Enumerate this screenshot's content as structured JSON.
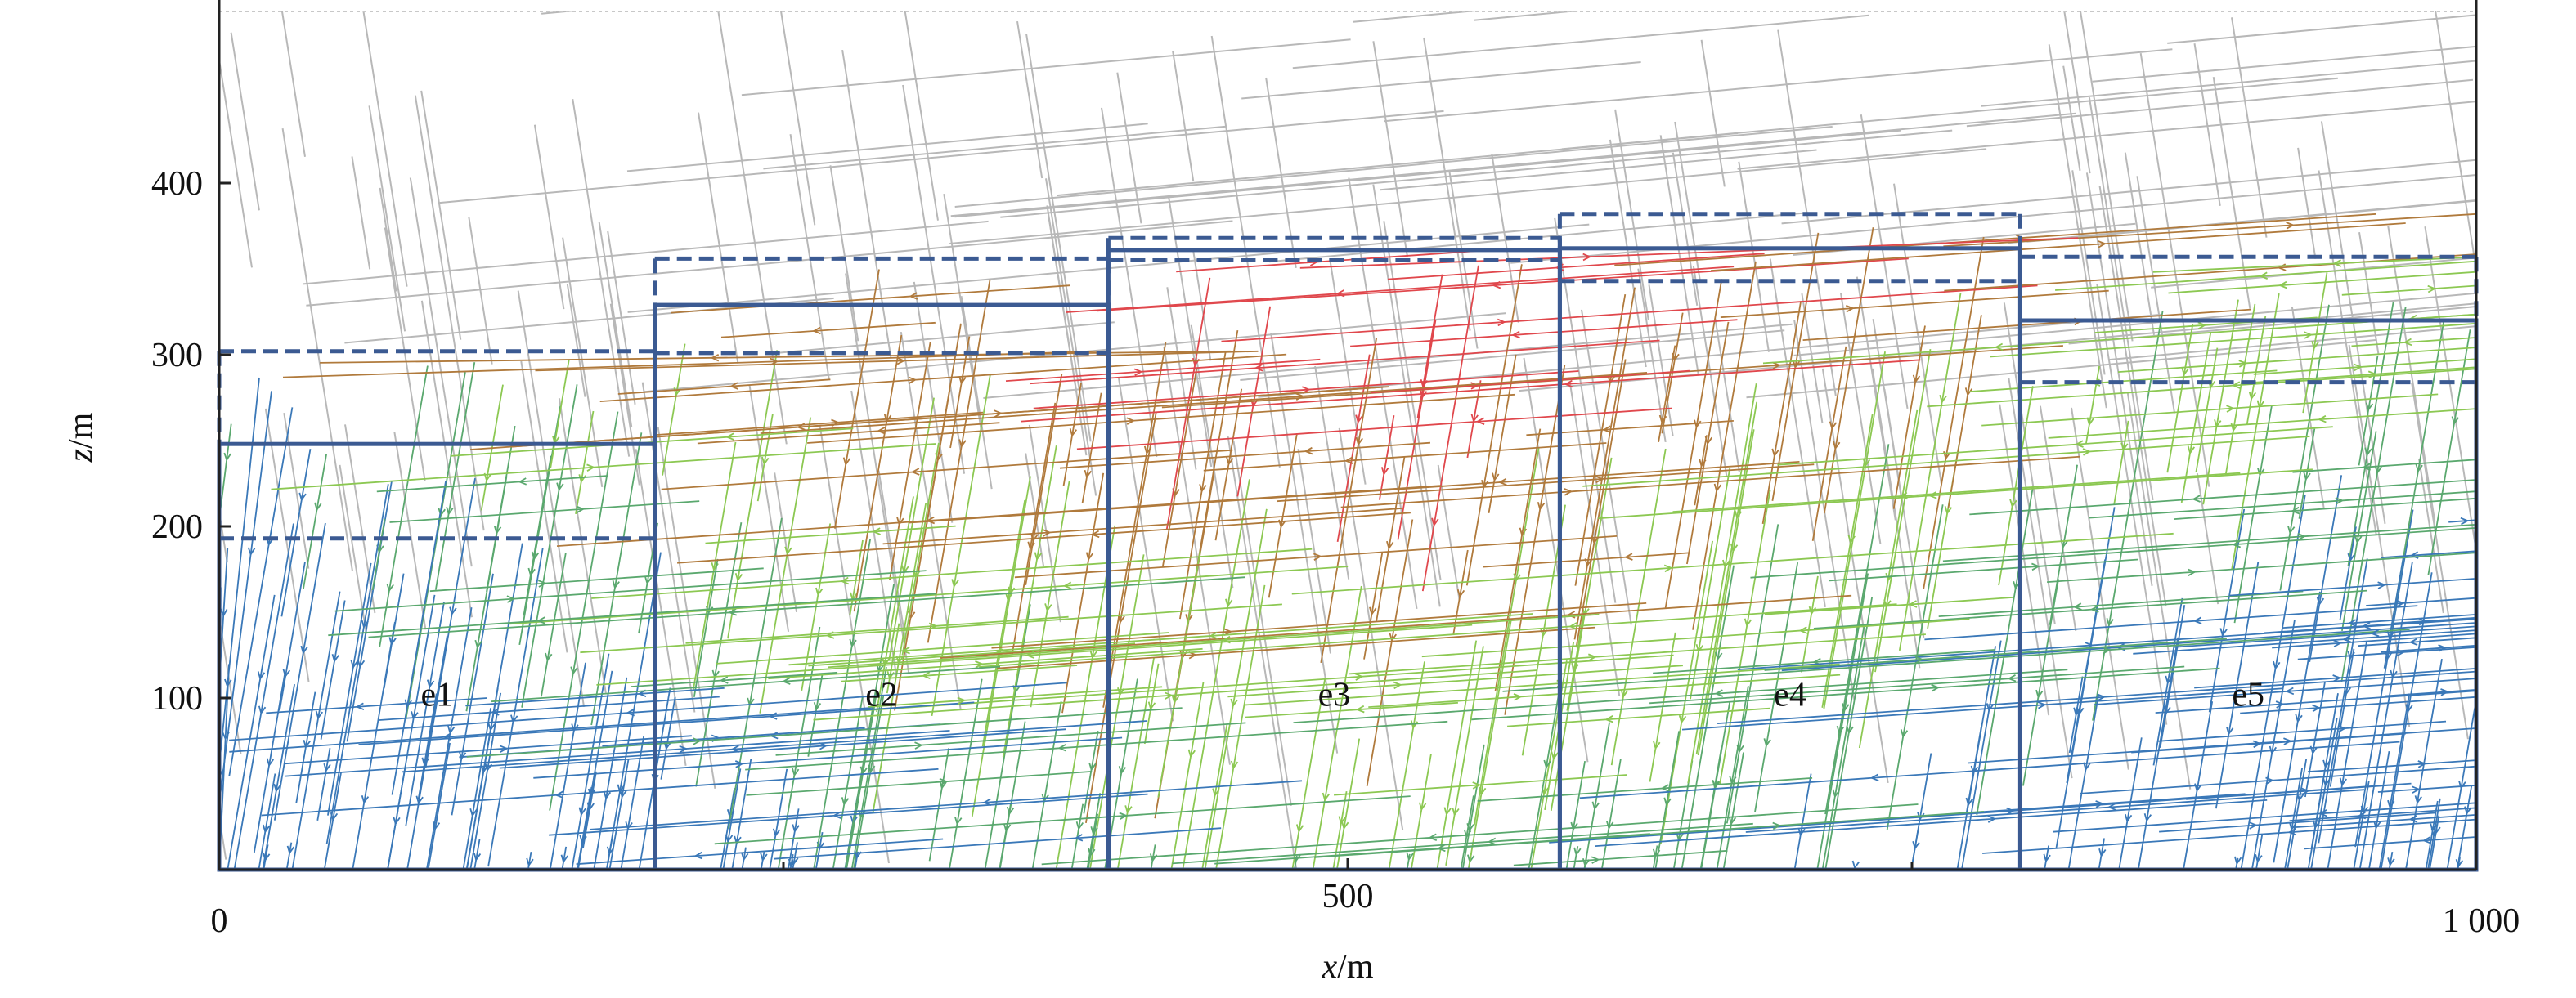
{
  "chart_data": {
    "type": "diagram",
    "xlabel_var": "x",
    "xlabel_unit": "/m",
    "ylabel_var": "z",
    "ylabel_unit": "/m",
    "xlim": [
      0,
      1000
    ],
    "ylim": [
      0,
      500
    ],
    "x_ticks": [
      0,
      500,
      1000
    ],
    "x_tick_labels": [
      "0",
      "500",
      "1 000"
    ],
    "x_minor_ticks": [
      250,
      750
    ],
    "y_ticks": [
      100,
      200,
      300,
      400
    ],
    "y_tick_labels": [
      "100",
      "200",
      "300",
      "400"
    ],
    "zones": [
      {
        "label": "e1",
        "x0": 0,
        "x1": 193,
        "z_solid": 248,
        "z_dash_top": 302,
        "z_dash_bottom": 193
      },
      {
        "label": "e2",
        "x0": 193,
        "x1": 394,
        "z_solid": 329,
        "z_dash_top": 356,
        "z_dash_bottom": 301
      },
      {
        "label": "e3",
        "x0": 394,
        "x1": 594,
        "z_solid": 361,
        "z_dash_top": 368,
        "z_dash_bottom": 355
      },
      {
        "label": "e4",
        "x0": 594,
        "x1": 798,
        "z_solid": 362,
        "z_dash_top": 382,
        "z_dash_bottom": 343
      },
      {
        "label": "e5",
        "x0": 798,
        "x1": 1000,
        "z_solid": 320,
        "z_dash_top": 357,
        "z_dash_bottom": 284
      }
    ],
    "fracture_colors": {
      "background": "#b8b8b8",
      "deep": "#3a78b8",
      "mid_low": "#5aa86e",
      "mid": "#8cc852",
      "mid_high": "#b07a3c",
      "high": "#e0474c"
    },
    "zone_line_color": "#3b5a92"
  }
}
